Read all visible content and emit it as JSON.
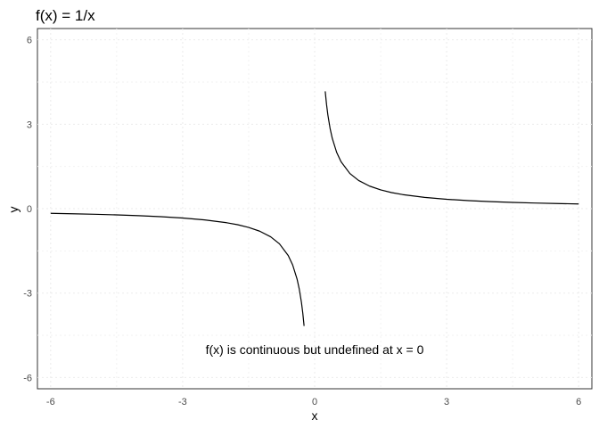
{
  "chart_data": {
    "type": "line",
    "title": "f(x) = 1/x",
    "xlabel": "x",
    "ylabel": "y",
    "xlim": [
      -6.3,
      6.3
    ],
    "ylim": [
      -6.4,
      6.4
    ],
    "x_ticks": [
      "-6",
      "-3",
      "0",
      "3",
      "6"
    ],
    "y_ticks": [
      "-6",
      "-3",
      "0",
      "3",
      "6"
    ],
    "grid": "dotted",
    "series": [
      {
        "values_left": {
          "x": [
            -6.0,
            -5.5,
            -5.0,
            -4.5,
            -4.0,
            -3.5,
            -3.0,
            -2.5,
            -2.0,
            -1.75,
            -1.5,
            -1.25,
            -1.0,
            -0.8,
            -0.6,
            -0.5,
            -0.4,
            -0.35,
            -0.3,
            -0.27,
            -0.24
          ],
          "y": [
            -0.167,
            -0.182,
            -0.2,
            -0.222,
            -0.25,
            -0.286,
            -0.333,
            -0.4,
            -0.5,
            -0.571,
            -0.667,
            -0.8,
            -1.0,
            -1.25,
            -1.667,
            -2.0,
            -2.5,
            -2.857,
            -3.333,
            -3.704,
            -4.167
          ]
        },
        "values_right": {
          "x": [
            0.24,
            0.27,
            0.3,
            0.35,
            0.4,
            0.5,
            0.6,
            0.8,
            1.0,
            1.25,
            1.5,
            1.75,
            2.0,
            2.5,
            3.0,
            3.5,
            4.0,
            4.5,
            5.0,
            5.5,
            6.0
          ],
          "y": [
            4.167,
            3.704,
            3.333,
            2.857,
            2.5,
            2.0,
            1.667,
            1.25,
            1.0,
            0.8,
            0.667,
            0.571,
            0.5,
            0.4,
            0.333,
            0.286,
            0.25,
            0.222,
            0.2,
            0.182,
            0.167
          ]
        },
        "color": "#000000"
      }
    ],
    "annotations": [
      {
        "text": "f(x) is continuous but undefined at x = 0",
        "x": 0,
        "y": -5
      }
    ]
  }
}
